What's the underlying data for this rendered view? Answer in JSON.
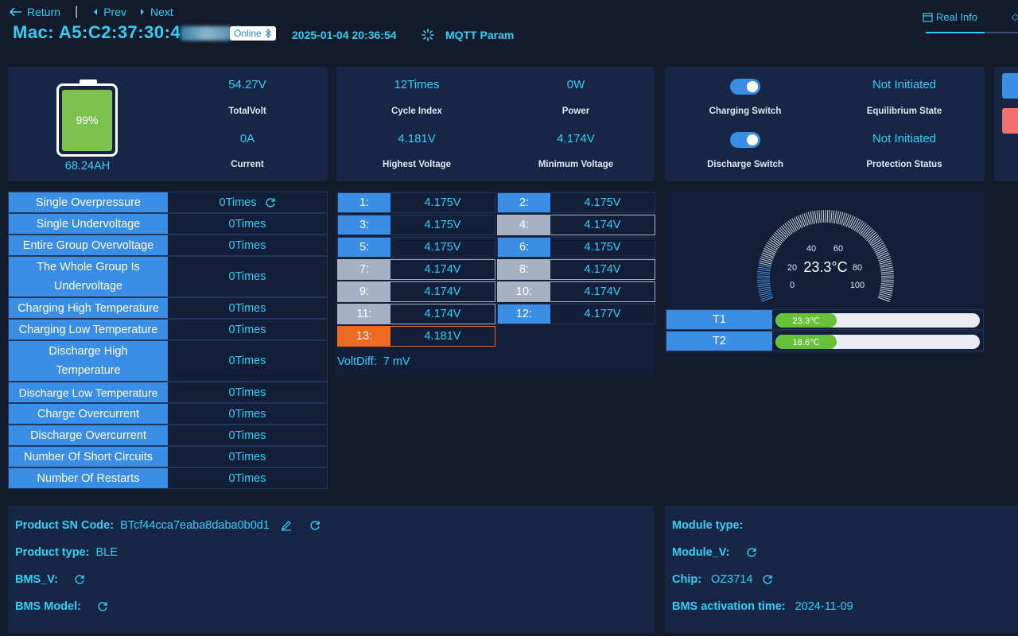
{
  "header": {
    "return_label": "Return",
    "prev_label": "Prev",
    "next_label": "Next",
    "mac_label": "Mac: A5:C2:37:30:4",
    "mac_tail": "A",
    "online_label": "Online",
    "datetime": "2025-01-04 20:36:54",
    "mqtt_label": "MQTT Param",
    "tab_real_info": "Real Info"
  },
  "battery": {
    "percent": "99%",
    "percent_value": 0.99,
    "capacity": "68.24AH",
    "total_volt": "54.27V",
    "total_volt_label": "TotalVolt",
    "current": "0A",
    "current_label": "Current"
  },
  "stats": {
    "cycle_index": "12Times",
    "cycle_index_label": "Cycle Index",
    "power": "0W",
    "power_label": "Power",
    "highest_voltage": "4.181V",
    "highest_voltage_label": "Highest Voltage",
    "minimum_voltage": "4.174V",
    "minimum_voltage_label": "Minimum Voltage"
  },
  "switches": {
    "charging_switch_label": "Charging Switch",
    "discharge_switch_label": "Discharge Switch",
    "equilibrium_state": "Not Initiated",
    "equilibrium_state_label": "Equilibrium State",
    "protection_status": "Not Initiated",
    "protection_status_label": "Protection Status"
  },
  "protections": [
    {
      "label": "Single Overpressure",
      "value": "0Times"
    },
    {
      "label": "Single Undervoltage",
      "value": "0Times"
    },
    {
      "label": "Entire Group Overvoltage",
      "value": "0Times"
    },
    {
      "label": "The Whole Group Is Undervoltage",
      "value": "0Times"
    },
    {
      "label": "Charging High Temperature",
      "value": "0Times"
    },
    {
      "label": "Charging Low Temperature",
      "value": "0Times"
    },
    {
      "label": "Discharge High Temperature",
      "value": "0Times"
    },
    {
      "label": "Discharge Low Temperature",
      "value": "0Times"
    },
    {
      "label": "Charge Overcurrent",
      "value": "0Times"
    },
    {
      "label": "Discharge Overcurrent",
      "value": "0Times"
    },
    {
      "label": "Number Of Short Circuits",
      "value": "0Times"
    },
    {
      "label": "Number Of Restarts",
      "value": "0Times"
    }
  ],
  "cells": [
    {
      "num": "1:",
      "volt": "4.175V",
      "state": "blue"
    },
    {
      "num": "2:",
      "volt": "4.175V",
      "state": "blue"
    },
    {
      "num": "3:",
      "volt": "4.175V",
      "state": "blue"
    },
    {
      "num": "4:",
      "volt": "4.174V",
      "state": "gray"
    },
    {
      "num": "5:",
      "volt": "4.175V",
      "state": "blue"
    },
    {
      "num": "6:",
      "volt": "4.175V",
      "state": "blue"
    },
    {
      "num": "7:",
      "volt": "4.174V",
      "state": "gray"
    },
    {
      "num": "8:",
      "volt": "4.174V",
      "state": "gray"
    },
    {
      "num": "9:",
      "volt": "4.174V",
      "state": "gray"
    },
    {
      "num": "10:",
      "volt": "4.174V",
      "state": "gray"
    },
    {
      "num": "11:",
      "volt": "4.174V",
      "state": "gray"
    },
    {
      "num": "12:",
      "volt": "4.177V",
      "state": "blue"
    },
    {
      "num": "13:",
      "volt": "4.181V",
      "state": "orange"
    }
  ],
  "volt_diff": "VoltDiff:  7 mV",
  "gauge": {
    "value_label": "23.3°C",
    "value": 23.3,
    "ticks": [
      "0",
      "20",
      "40",
      "60",
      "80",
      "100"
    ]
  },
  "temps": [
    {
      "label": "T1",
      "value": "23.3℃",
      "fill": 0.3
    },
    {
      "label": "T2",
      "value": "18.6℃",
      "fill": 0.3
    }
  ],
  "info_left": {
    "sn_label": "Product SN Code:",
    "sn_value": "BTcf44cca7eaba8daba0b0d1",
    "type_label": "Product type:",
    "type_value": "BLE",
    "bms_v_label": "BMS_V:",
    "bms_model_label": "BMS Model:"
  },
  "info_right": {
    "module_type_label": "Module type:",
    "module_v_label": "Module_V:",
    "chip_label": "Chip:",
    "chip_value": "OZ3714",
    "activation_label": "BMS activation time:",
    "activation_value": "2024-11-09"
  },
  "colors": {
    "accent": "#2fd0f5",
    "label_blue": "#3a8ee6",
    "battery_green": "#7dc24f",
    "cell_gray": "#a6b1c4",
    "cell_orange": "#ee6a22"
  }
}
